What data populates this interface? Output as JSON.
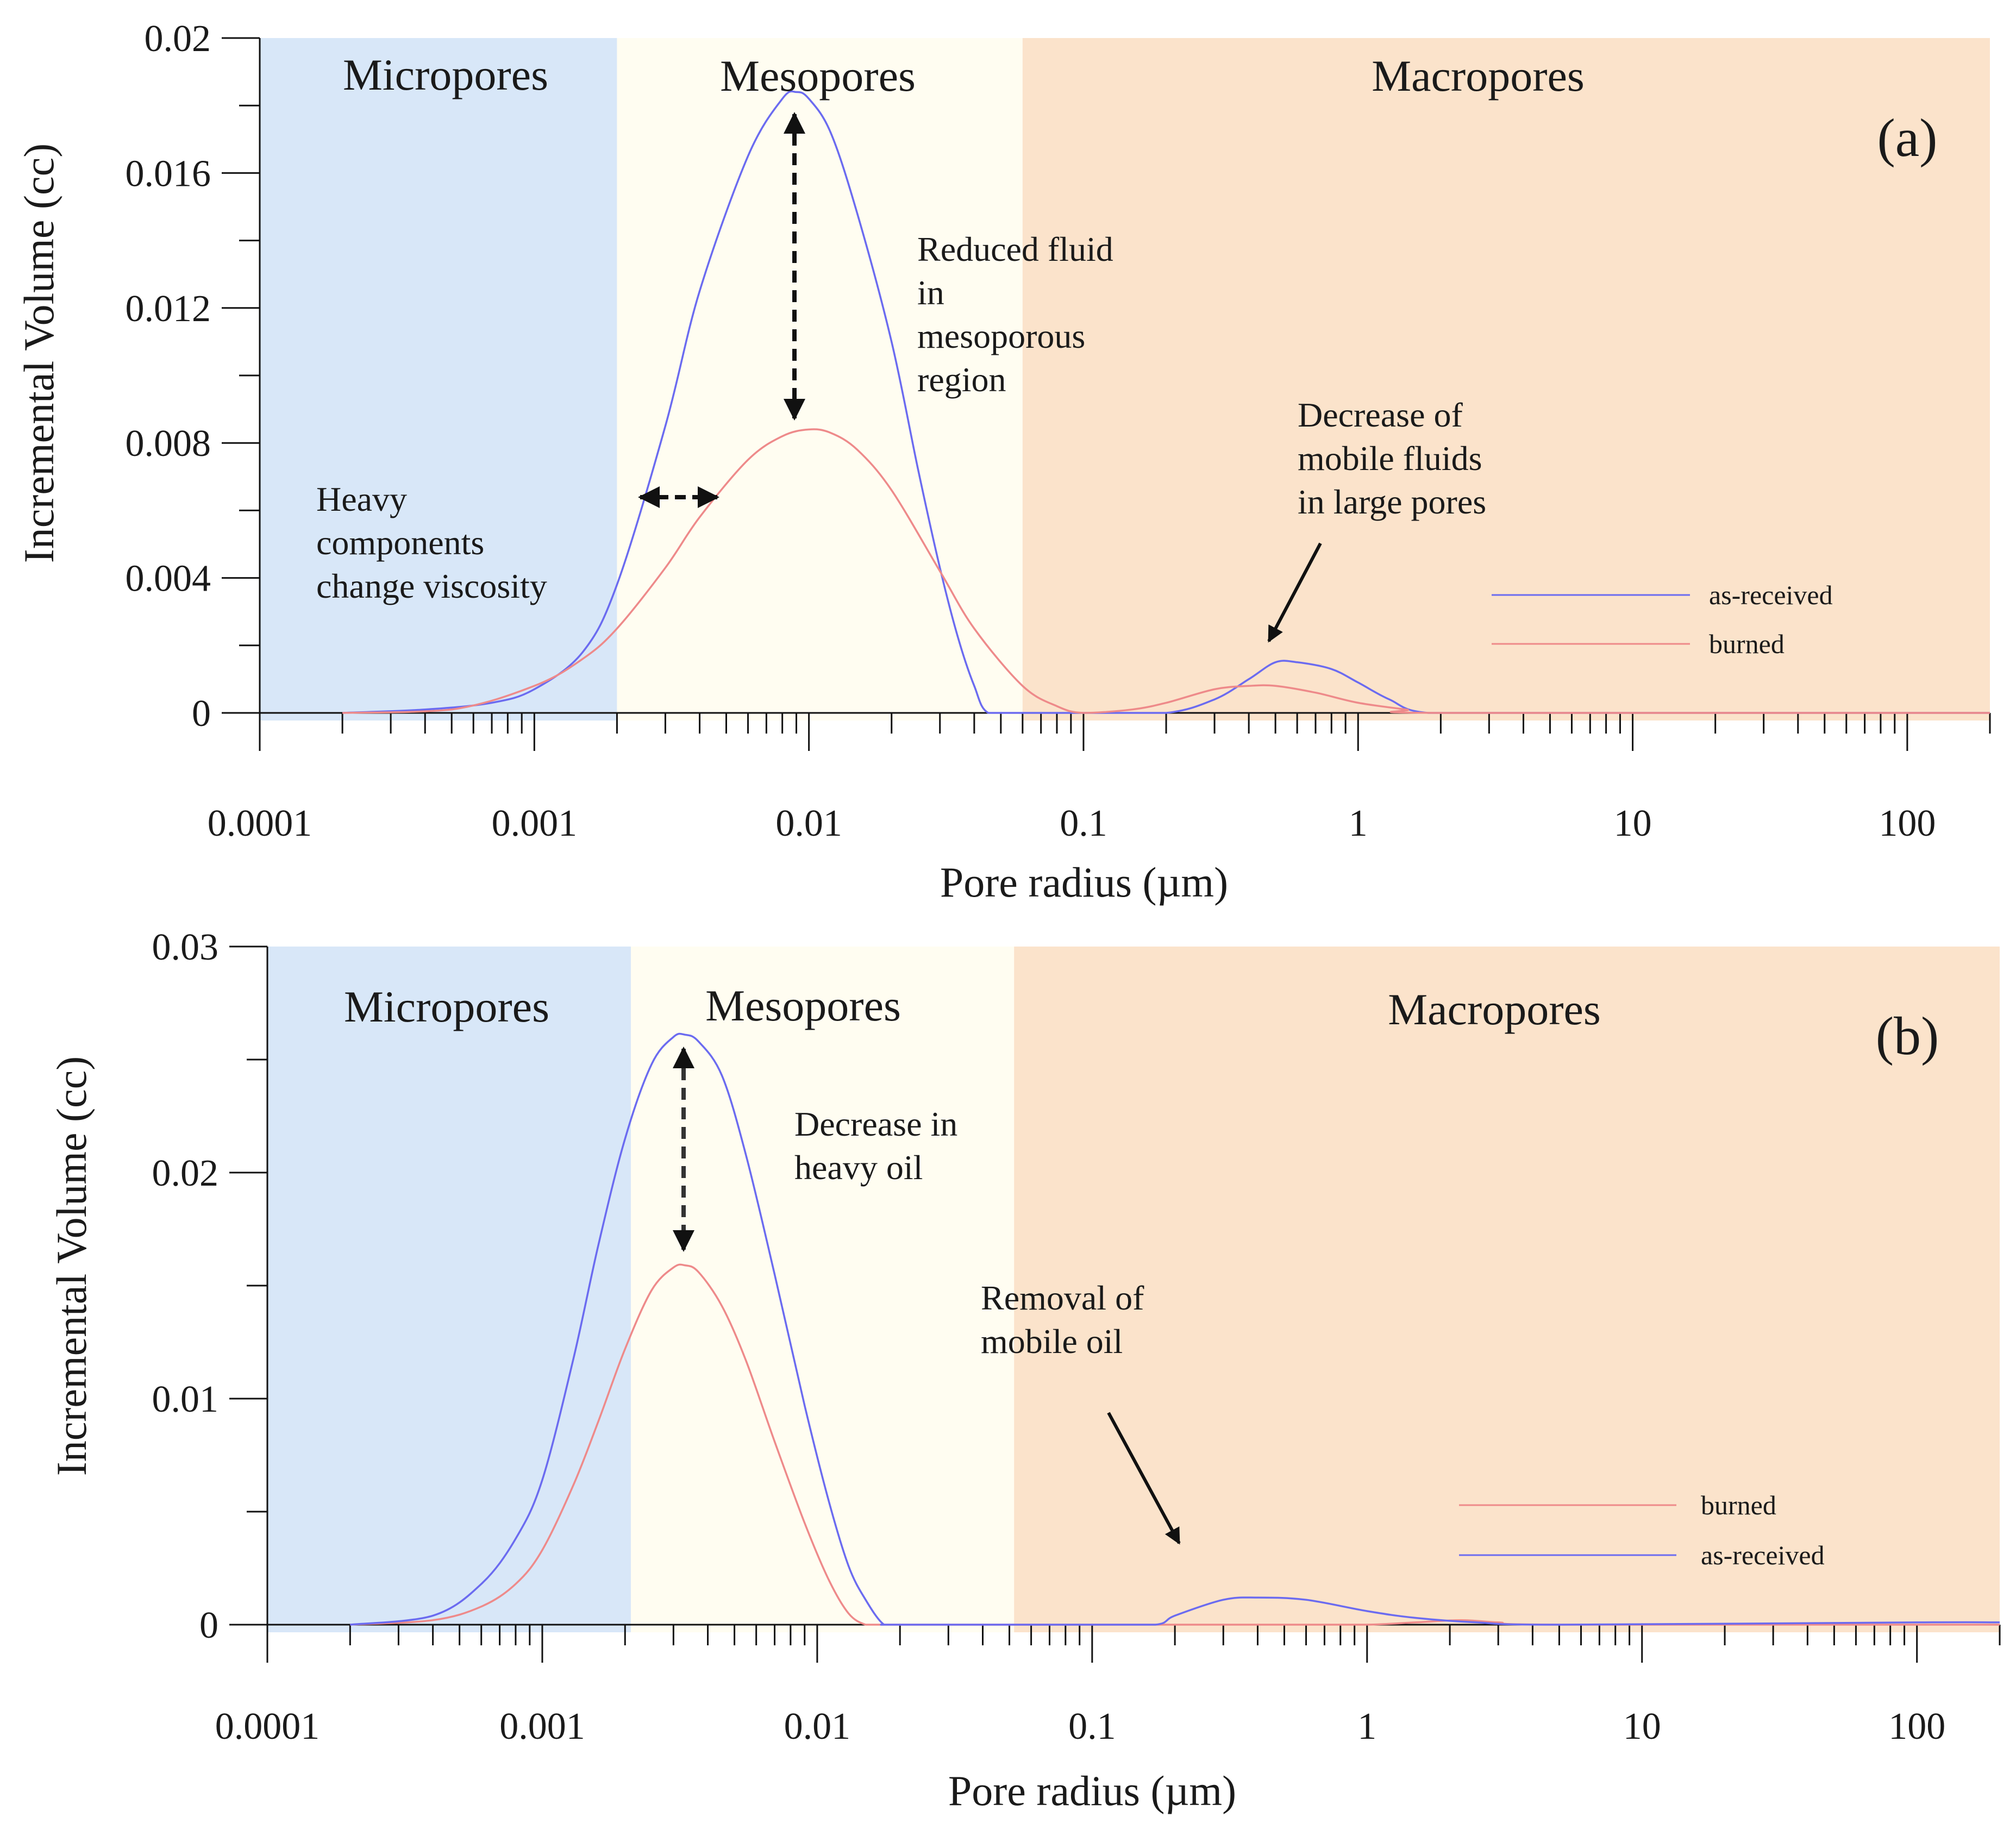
{
  "chart_data": [
    {
      "type": "line",
      "panel_label": "(a)",
      "xlabel": "Pore radius (µm)",
      "ylabel": "Incremental Volume (cc)",
      "xscale": "log",
      "xlim": [
        0.0001,
        200
      ],
      "ylim": [
        0,
        0.02
      ],
      "xticks": [
        0.0001,
        0.001,
        0.01,
        0.1,
        1,
        10,
        100
      ],
      "xtick_labels": [
        "0.0001",
        "0.001",
        "0.01",
        "0.1",
        "1",
        "10",
        "100"
      ],
      "yticks": [
        0,
        0.004,
        0.008,
        0.012,
        0.016,
        0.02
      ],
      "ytick_labels": [
        "0",
        "0.004",
        "0.008",
        "0.012",
        "0.016",
        "0.02"
      ],
      "regions": [
        {
          "name": "Micropores",
          "from": 0.0001,
          "to": 0.002,
          "color": "#d8e7f8"
        },
        {
          "name": "Mesopores",
          "from": 0.002,
          "to": 0.06,
          "color": "#fffdf1"
        },
        {
          "name": "Macropores",
          "from": 0.06,
          "to": 200,
          "color": "#fbe3cb"
        }
      ],
      "series": [
        {
          "name": "as-received",
          "color": "#6b6bf0",
          "x": [
            0.0002,
            0.0004,
            0.0007,
            0.001,
            0.0015,
            0.002,
            0.003,
            0.004,
            0.006,
            0.008,
            0.009,
            0.01,
            0.012,
            0.015,
            0.02,
            0.025,
            0.03,
            0.035,
            0.04,
            0.045,
            0.06,
            0.1,
            0.2,
            0.3,
            0.4,
            0.5,
            0.6,
            0.8,
            1,
            1.3,
            1.8,
            5,
            50,
            200
          ],
          "y": [
            0,
            0.0001,
            0.0003,
            0.0007,
            0.0018,
            0.0038,
            0.0085,
            0.0125,
            0.0165,
            0.0182,
            0.0184,
            0.0182,
            0.0172,
            0.0148,
            0.011,
            0.0072,
            0.0043,
            0.0022,
            0.0008,
            0,
            0,
            0,
            0,
            0.0004,
            0.001,
            0.0015,
            0.0015,
            0.0013,
            0.0009,
            0.0004,
            0,
            0,
            0,
            0
          ]
        },
        {
          "name": "burned",
          "color": "#ee8a8a",
          "x": [
            0.0002,
            0.0005,
            0.001,
            0.0015,
            0.002,
            0.003,
            0.004,
            0.006,
            0.008,
            0.01,
            0.012,
            0.015,
            0.02,
            0.03,
            0.04,
            0.06,
            0.08,
            0.1,
            0.15,
            0.2,
            0.3,
            0.4,
            0.5,
            0.7,
            1,
            1.5,
            2,
            200
          ],
          "y": [
            0,
            0.0001,
            0.0008,
            0.0016,
            0.0025,
            0.0043,
            0.0058,
            0.0075,
            0.0082,
            0.0084,
            0.0083,
            0.0078,
            0.0066,
            0.0042,
            0.0025,
            0.0008,
            0.0002,
            0,
            0.0001,
            0.0003,
            0.0007,
            0.0008,
            0.0008,
            0.0006,
            0.0003,
            0.0001,
            0,
            0
          ]
        }
      ],
      "annotations": [
        {
          "lines": [
            "Heavy",
            "components",
            "change viscosity"
          ]
        },
        {
          "lines": [
            "Reduced fluid",
            "in",
            "mesoporous",
            "region"
          ]
        },
        {
          "lines": [
            "Decrease of",
            "mobile fluids",
            "in large pores"
          ]
        }
      ],
      "legend": {
        "placement": "lower-right",
        "entries": [
          "as-received",
          "burned"
        ]
      }
    },
    {
      "type": "line",
      "panel_label": "(b)",
      "xlabel": "Pore radius (µm)",
      "ylabel": "Incremental Volume (cc)",
      "xscale": "log",
      "xlim": [
        0.0001,
        200
      ],
      "ylim": [
        0,
        0.03
      ],
      "xticks": [
        0.0001,
        0.001,
        0.01,
        0.1,
        1,
        10,
        100
      ],
      "xtick_labels": [
        "0.0001",
        "0.001",
        "0.01",
        "0.1",
        "1",
        "10",
        "100"
      ],
      "yticks": [
        0,
        0.01,
        0.02,
        0.03
      ],
      "ytick_labels": [
        "0",
        "0.01",
        "0.02",
        "0.03"
      ],
      "regions": [
        {
          "name": "Micropores",
          "from": 0.0001,
          "to": 0.0021,
          "color": "#d8e7f8"
        },
        {
          "name": "Mesopores",
          "from": 0.0021,
          "to": 0.052,
          "color": "#fffdf1"
        },
        {
          "name": "Macropores",
          "from": 0.052,
          "to": 200,
          "color": "#fbe3cb"
        }
      ],
      "series": [
        {
          "name": "burned",
          "color": "#ee8a8a",
          "x": [
            0.0002,
            0.0004,
            0.0006,
            0.0008,
            0.001,
            0.0013,
            0.0016,
            0.002,
            0.0025,
            0.003,
            0.0033,
            0.0037,
            0.0045,
            0.0055,
            0.007,
            0.009,
            0.011,
            0.013,
            0.015,
            0.017,
            0.02,
            0.1,
            0.5,
            1,
            1.5,
            2.2,
            3,
            5,
            200
          ],
          "y": [
            0,
            0.0002,
            0.0008,
            0.0018,
            0.0033,
            0.0062,
            0.009,
            0.0122,
            0.0148,
            0.0158,
            0.0159,
            0.0156,
            0.0141,
            0.0117,
            0.0081,
            0.0045,
            0.002,
            0.0005,
            0,
            0,
            0,
            0,
            0,
            0,
            0.0001,
            0.0002,
            0.0001,
            0,
            0
          ]
        },
        {
          "name": "as-received",
          "color": "#6b6bf0",
          "x": [
            0.0002,
            0.0004,
            0.0006,
            0.0008,
            0.001,
            0.0013,
            0.0016,
            0.002,
            0.0025,
            0.003,
            0.0033,
            0.0037,
            0.0045,
            0.0055,
            0.007,
            0.009,
            0.011,
            0.013,
            0.015,
            0.0175,
            0.02,
            0.1,
            0.17,
            0.2,
            0.3,
            0.4,
            0.6,
            1,
            1.5,
            2.5,
            5,
            100,
            200
          ],
          "y": [
            0,
            0.0004,
            0.0018,
            0.0038,
            0.0064,
            0.0118,
            0.0168,
            0.0215,
            0.0248,
            0.026,
            0.0261,
            0.0258,
            0.0243,
            0.0208,
            0.0155,
            0.0097,
            0.0055,
            0.0026,
            0.0011,
            0,
            0,
            0,
            0,
            0.0004,
            0.0011,
            0.0012,
            0.0011,
            0.0006,
            0.0003,
            0.0001,
            0,
            0.0001,
            0.0001
          ]
        }
      ],
      "annotations": [
        {
          "lines": [
            "Decrease in",
            "heavy oil"
          ]
        },
        {
          "lines": [
            "Removal of",
            "mobile oil"
          ]
        }
      ],
      "legend": {
        "placement": "lower-right",
        "entries": [
          "burned",
          "as-received"
        ]
      }
    }
  ]
}
